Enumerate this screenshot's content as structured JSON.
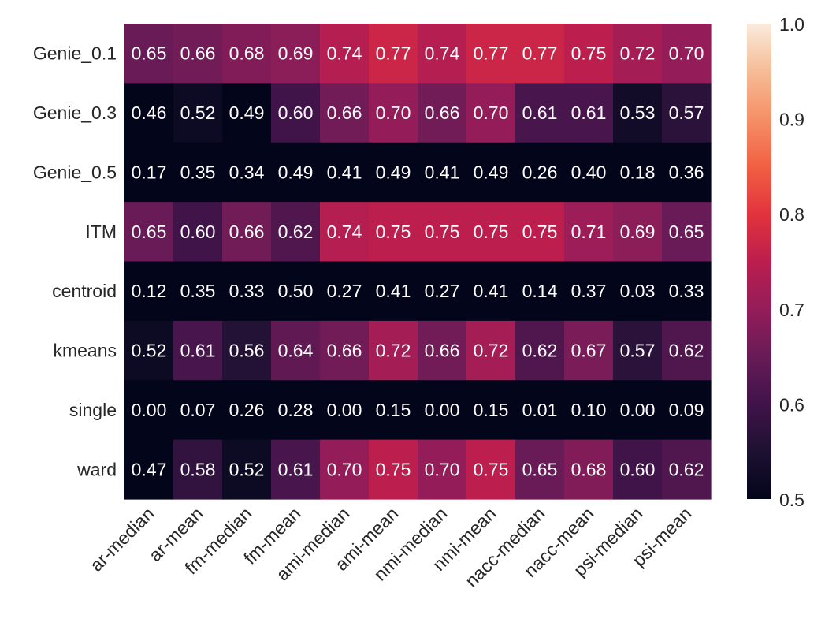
{
  "chart_data": {
    "type": "heatmap",
    "title": "",
    "xlabel": "",
    "ylabel": "",
    "x_categories": [
      "ar-median",
      "ar-mean",
      "fm-median",
      "fm-mean",
      "ami-median",
      "ami-mean",
      "nmi-median",
      "nmi-mean",
      "nacc-median",
      "nacc-mean",
      "psi-median",
      "psi-mean"
    ],
    "y_categories": [
      "Genie_0.1",
      "Genie_0.3",
      "Genie_0.5",
      "ITM",
      "centroid",
      "kmeans",
      "single",
      "ward"
    ],
    "values": [
      [
        0.65,
        0.66,
        0.68,
        0.69,
        0.74,
        0.77,
        0.74,
        0.77,
        0.77,
        0.75,
        0.72,
        0.7
      ],
      [
        0.46,
        0.52,
        0.49,
        0.6,
        0.66,
        0.7,
        0.66,
        0.7,
        0.61,
        0.61,
        0.53,
        0.57
      ],
      [
        0.17,
        0.35,
        0.34,
        0.49,
        0.41,
        0.49,
        0.41,
        0.49,
        0.26,
        0.4,
        0.18,
        0.36
      ],
      [
        0.65,
        0.6,
        0.66,
        0.62,
        0.74,
        0.75,
        0.75,
        0.75,
        0.75,
        0.71,
        0.69,
        0.65
      ],
      [
        0.12,
        0.35,
        0.33,
        0.5,
        0.27,
        0.41,
        0.27,
        0.41,
        0.14,
        0.37,
        0.03,
        0.33
      ],
      [
        0.52,
        0.61,
        0.56,
        0.64,
        0.66,
        0.72,
        0.66,
        0.72,
        0.62,
        0.67,
        0.57,
        0.62
      ],
      [
        0.0,
        0.07,
        0.26,
        0.28,
        0.0,
        0.15,
        0.0,
        0.15,
        0.01,
        0.1,
        0.0,
        0.09
      ],
      [
        0.47,
        0.58,
        0.52,
        0.61,
        0.7,
        0.75,
        0.7,
        0.75,
        0.65,
        0.68,
        0.6,
        0.62
      ]
    ],
    "value_format": "2 decimals",
    "colormap": "rocket",
    "colorbar": {
      "vmin": 0.5,
      "vmax": 1.0,
      "ticks": [
        "0.5",
        "0.6",
        "0.7",
        "0.8",
        "0.9",
        "1.0"
      ],
      "placement": "right"
    },
    "x_tick_rotation": "45 degrees",
    "grid": false,
    "annotation_color": "#ffffff",
    "label_color": "#262626"
  }
}
